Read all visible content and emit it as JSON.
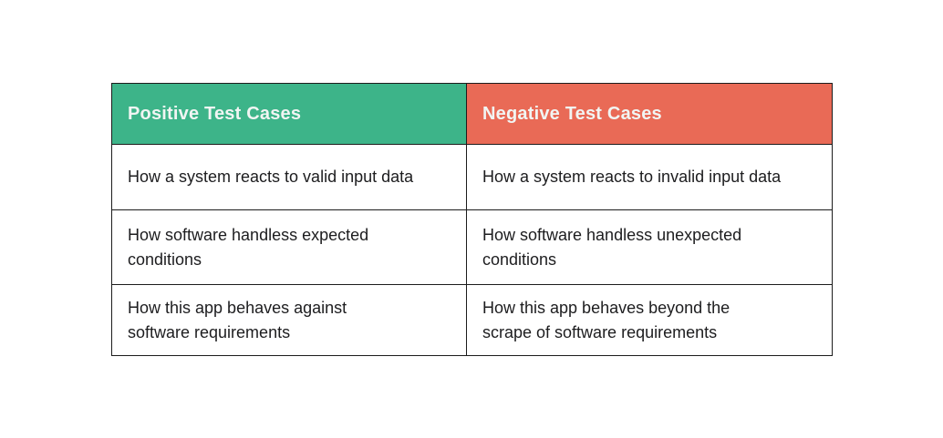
{
  "colors": {
    "page_background": "#FFFFFF",
    "positive_header_bg": "#3DB489",
    "negative_header_bg": "#E96A56",
    "header_text": "#F1F5F3",
    "body_text": "#1D1D1F",
    "border": "#1C1C1C"
  },
  "table": {
    "headers": [
      {
        "label": "Positive Test Cases",
        "bg": "#3DB489"
      },
      {
        "label": "Negative Test Cases",
        "bg": "#E96A56"
      }
    ],
    "rows": [
      {
        "cells": [
          "How a system reacts to valid input data",
          "How a system reacts to invalid input data"
        ]
      },
      {
        "cells": [
          "How software handless expected\nconditions",
          "How software handless unexpected\nconditions"
        ]
      },
      {
        "cells": [
          "How this app behaves against\nsoftware requirements",
          "How this app behaves beyond the\nscrape of software requirements"
        ]
      }
    ]
  },
  "chart_data": {
    "type": "table",
    "columns": [
      "Positive Test Cases",
      "Negative Test Cases"
    ],
    "rows": [
      [
        "How a system reacts to valid input data",
        "How a system reacts to invalid input data"
      ],
      [
        "How software handless expected conditions",
        "How software handless unexpected conditions"
      ],
      [
        "How this app behaves against software requirements",
        "How this app behaves beyond the scrape of software requirements"
      ]
    ],
    "header_colors": [
      "#3DB489",
      "#E96A56"
    ],
    "grid": true,
    "legend_position": "none"
  }
}
